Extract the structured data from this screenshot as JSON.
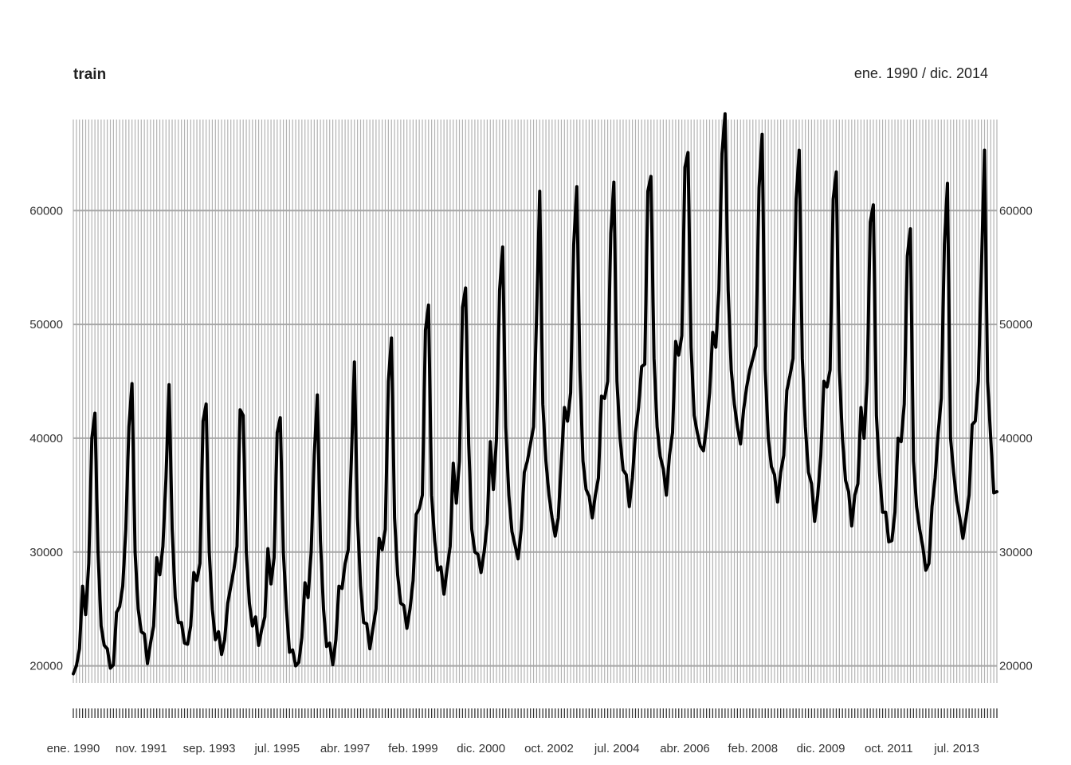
{
  "chart_data": {
    "type": "line",
    "title": "train",
    "date_range": "ene. 1990 / dic. 2014",
    "xlabel": "",
    "ylabel": "",
    "x_start": "1990-01",
    "x_end": "2014-12",
    "frequency": "monthly",
    "x_tick_labels": [
      "ene. 1990",
      "nov. 1991",
      "sep. 1993",
      "jul. 1995",
      "abr. 1997",
      "feb. 1999",
      "dic. 2000",
      "oct. 2002",
      "jul. 2004",
      "abr. 2006",
      "feb. 2008",
      "dic. 2009",
      "oct. 2011",
      "jul. 2013"
    ],
    "y_ticks": [
      20000,
      30000,
      40000,
      50000,
      60000
    ],
    "ylim": [
      18500,
      68000
    ],
    "grid": true,
    "line_color": "#000000",
    "series": [
      {
        "values": [
          19300,
          20000,
          21500,
          27000,
          24500,
          29000,
          40000,
          42200,
          30000,
          23500,
          21800,
          21500,
          19800,
          20100,
          24700,
          25200,
          27000,
          32000,
          41000,
          44800,
          30000,
          25000,
          23000,
          22800,
          20200,
          22000,
          23500,
          29500,
          28000,
          30500,
          36500,
          44700,
          32000,
          26000,
          23800,
          23800,
          22000,
          21900,
          23500,
          28200,
          27500,
          29000,
          41500,
          43000,
          30000,
          25000,
          22300,
          23000,
          21000,
          22300,
          25500,
          27000,
          28500,
          30500,
          42500,
          42000,
          30000,
          25500,
          23500,
          24300,
          21800,
          23200,
          24300,
          30300,
          27200,
          29500,
          40500,
          41800,
          30000,
          25000,
          21200,
          21400,
          20000,
          20300,
          22500,
          27300,
          26000,
          30000,
          38500,
          43800,
          31000,
          25000,
          21700,
          22000,
          20100,
          22300,
          27000,
          26800,
          29000,
          30200,
          38000,
          46700,
          33000,
          27000,
          23800,
          23700,
          21500,
          23300,
          25000,
          31200,
          30200,
          32000,
          45000,
          48800,
          33000,
          28000,
          25500,
          25300,
          23300,
          25000,
          27500,
          33300,
          33800,
          35000,
          49500,
          51700,
          35000,
          31000,
          28400,
          28700,
          26300,
          28500,
          30500,
          37800,
          34300,
          38000,
          51500,
          53200,
          39500,
          32000,
          30000,
          29800,
          28200,
          30000,
          32500,
          39700,
          35500,
          40000,
          53000,
          56800,
          41000,
          35000,
          31800,
          30600,
          29400,
          32000,
          37000,
          38000,
          39500,
          41000,
          51000,
          61700,
          43000,
          38000,
          35000,
          33000,
          31400,
          33000,
          38000,
          42700,
          41500,
          44000,
          57000,
          62100,
          46000,
          38000,
          35500,
          34900,
          33000,
          35000,
          36500,
          43700,
          43500,
          45000,
          58000,
          62500,
          45000,
          40000,
          37200,
          36800,
          34000,
          36500,
          40500,
          42700,
          46300,
          46500,
          61700,
          63000,
          47000,
          41000,
          38400,
          37300,
          35000,
          38500,
          40500,
          48500,
          47300,
          49000,
          63800,
          65100,
          48000,
          42000,
          40500,
          39300,
          38900,
          41000,
          44000,
          49300,
          48000,
          53000,
          65000,
          68500,
          53000,
          46000,
          43000,
          41000,
          39500,
          42500,
          44500,
          46000,
          47000,
          48100,
          62000,
          66700,
          46000,
          40000,
          37500,
          36800,
          34400,
          37000,
          38500,
          44200,
          45500,
          47000,
          61000,
          65300,
          47000,
          41000,
          37000,
          36000,
          32700,
          35000,
          38500,
          45000,
          44500,
          46000,
          61000,
          63400,
          46000,
          40000,
          36300,
          35300,
          32300,
          35000,
          36000,
          42700,
          40000,
          45000,
          59000,
          60500,
          42000,
          37000,
          33500,
          33500,
          30900,
          31000,
          33500,
          40000,
          39700,
          43000,
          56000,
          58400,
          38000,
          34000,
          32000,
          30500,
          28400,
          29000,
          34000,
          36500,
          40500,
          43500,
          57000,
          62400,
          40000,
          37000,
          34500,
          33000,
          31200,
          33000,
          35000,
          41200,
          41500,
          45000,
          55000,
          65300,
          45000,
          40000,
          35200,
          35300
        ]
      }
    ]
  }
}
